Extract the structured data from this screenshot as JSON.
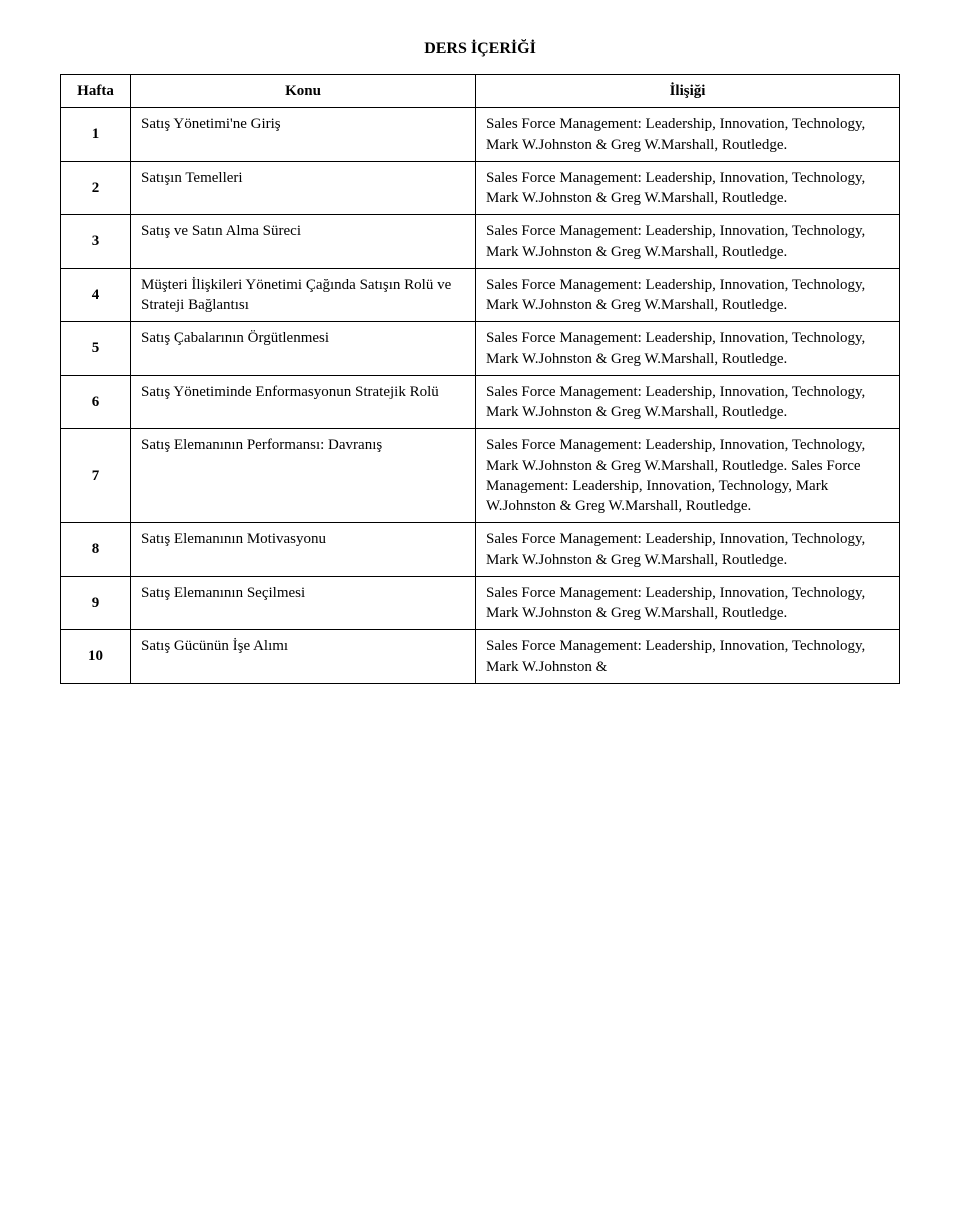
{
  "title": "DERS İÇERİĞİ",
  "headers": {
    "week": "Hafta",
    "topic": "Konu",
    "relation": "İlişiği"
  },
  "rows": [
    {
      "week": "1",
      "topic": "Satış Yönetimi'ne Giriş",
      "relation": "Sales Force Management: Leadership, Innovation, Technology, Mark W.Johnston & Greg W.Marshall, Routledge."
    },
    {
      "week": "2",
      "topic": "Satışın Temelleri",
      "relation": "Sales Force Management: Leadership, Innovation, Technology, Mark W.Johnston & Greg W.Marshall, Routledge."
    },
    {
      "week": "3",
      "topic": "Satış ve Satın Alma Süreci",
      "relation": "Sales Force Management: Leadership, Innovation, Technology, Mark W.Johnston & Greg W.Marshall, Routledge."
    },
    {
      "week": "4",
      "topic": "Müşteri İlişkileri Yönetimi Çağında Satışın Rolü ve Strateji Bağlantısı",
      "relation": "Sales Force Management: Leadership, Innovation, Technology, Mark W.Johnston & Greg W.Marshall, Routledge."
    },
    {
      "week": "5",
      "topic": "Satış Çabalarının Örgütlenmesi",
      "relation": "Sales Force Management: Leadership, Innovation, Technology, Mark W.Johnston & Greg W.Marshall, Routledge."
    },
    {
      "week": "6",
      "topic": "Satış Yönetiminde Enformasyonun Stratejik Rolü",
      "relation": "Sales Force Management: Leadership, Innovation, Technology, Mark W.Johnston & Greg W.Marshall, Routledge."
    },
    {
      "week": "7",
      "topic": "Satış Elemanının Performansı: Davranış",
      "relation": "Sales Force Management: Leadership, Innovation, Technology, Mark W.Johnston & Greg W.Marshall, Routledge. Sales Force Management: Leadership, Innovation, Technology, Mark W.Johnston & Greg W.Marshall, Routledge."
    },
    {
      "week": "8",
      "topic": "Satış Elemanının Motivasyonu",
      "relation": "Sales Force Management: Leadership, Innovation, Technology, Mark W.Johnston & Greg W.Marshall, Routledge."
    },
    {
      "week": "9",
      "topic": "Satış Elemanının Seçilmesi",
      "relation": "Sales Force Management: Leadership, Innovation, Technology, Mark W.Johnston & Greg W.Marshall, Routledge."
    },
    {
      "week": "10",
      "topic": "Satış Gücünün İşe Alımı",
      "relation": "Sales Force Management: Leadership, Innovation, Technology, Mark W.Johnston &"
    }
  ]
}
